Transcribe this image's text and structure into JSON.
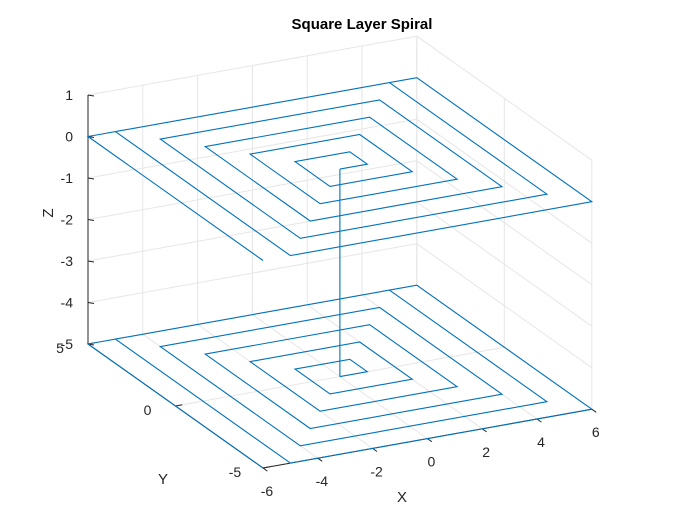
{
  "chart_data": {
    "type": "line3d",
    "title": "Square Layer Spiral",
    "xlabel": "X",
    "ylabel": "Y",
    "zlabel": "Z",
    "xlim": [
      -6,
      6
    ],
    "ylim": [
      -5,
      5
    ],
    "zlim": [
      -5,
      1
    ],
    "xticks": [
      -6,
      -4,
      -2,
      0,
      2,
      4,
      6
    ],
    "yticks": [
      -5,
      0,
      5
    ],
    "zticks": [
      -5,
      -4,
      -3,
      -2,
      -1,
      0,
      1
    ],
    "grid": true,
    "series": [
      {
        "color": "#0072BD",
        "description_of_shape": "square spiral at z=-5 rising vertically to square spiral at z=0",
        "spiral_spacing": 1,
        "turns": 6,
        "layers": [
          -5,
          0
        ]
      }
    ]
  }
}
